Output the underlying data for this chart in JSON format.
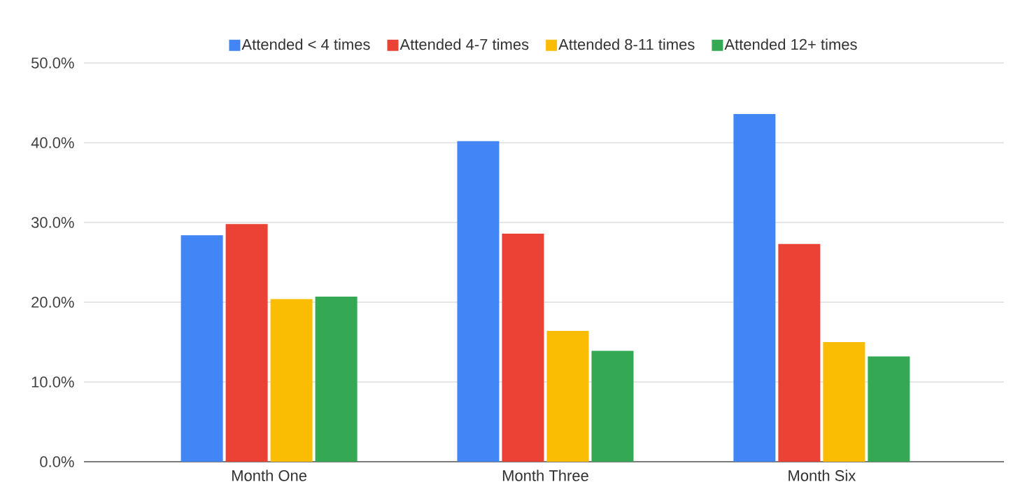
{
  "chart_data": {
    "type": "bar",
    "categories": [
      "Month One",
      "Month Three",
      "Month Six"
    ],
    "series": [
      {
        "name": "Attended < 4 times",
        "color": "#4285f4",
        "values": [
          28.4,
          40.2,
          43.6
        ]
      },
      {
        "name": "Attended 4-7 times",
        "color": "#ea4335",
        "values": [
          29.8,
          28.6,
          27.3
        ]
      },
      {
        "name": "Attended 8-11 times",
        "color": "#fbbc04",
        "values": [
          20.4,
          16.4,
          15.0
        ]
      },
      {
        "name": "Attended 12+ times",
        "color": "#34a853",
        "values": [
          20.7,
          13.9,
          13.2
        ]
      }
    ],
    "ylim": [
      0,
      50
    ],
    "yticks": [
      {
        "value": 0,
        "label": "0.0%"
      },
      {
        "value": 10,
        "label": "10.0%"
      },
      {
        "value": 20,
        "label": "20.0%"
      },
      {
        "value": 30,
        "label": "30.0%"
      },
      {
        "value": 40,
        "label": "40.0%"
      },
      {
        "value": 50,
        "label": "50.0%"
      }
    ],
    "grid": "y",
    "legend": "top"
  }
}
